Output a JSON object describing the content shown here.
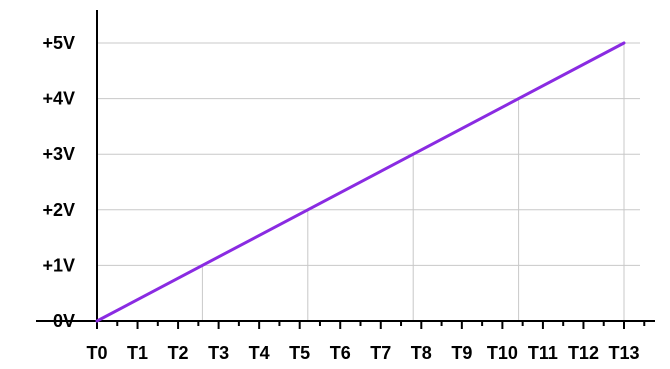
{
  "chart_data": {
    "type": "line",
    "title": "",
    "xlabel": "",
    "ylabel": "",
    "x_ticks": [
      "T0",
      "T1",
      "T2",
      "T3",
      "T4",
      "T5",
      "T6",
      "T7",
      "T8",
      "T9",
      "T10",
      "T11",
      "T12",
      "T13"
    ],
    "y_ticks": [
      "0V",
      "+1V",
      "+2V",
      "+3V",
      "+4V",
      "+5V"
    ],
    "y_tick_values": [
      0,
      1,
      2,
      3,
      4,
      5
    ],
    "xlim": [
      0,
      13
    ],
    "ylim": [
      0,
      5
    ],
    "grid": "horizontal at each volt; vertical drop lines where the line crosses each volt",
    "series": [
      {
        "color": "#8a2be2",
        "points": [
          [
            0,
            0
          ],
          [
            13,
            5
          ]
        ]
      }
    ],
    "drop_lines_at_y": [
      1,
      2,
      3,
      4,
      5
    ]
  }
}
